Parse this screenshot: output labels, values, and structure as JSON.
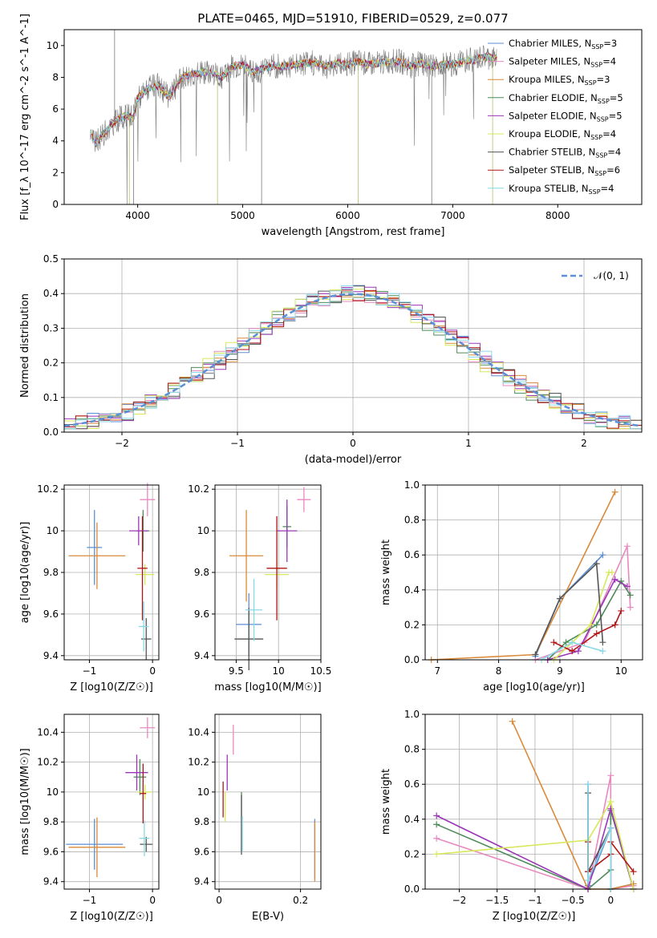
{
  "title": "PLATE=0465, MJD=51910, FIBERID=0529, z=0.077",
  "legend_colors": {
    "Chabrier MILES": "#5b8fd6",
    "Salpeter MILES": "#e889c0",
    "Kroupa MILES": "#d98a3a",
    "Chabrier ELODIE": "#4f8a5b",
    "Salpeter ELODIE": "#9b36b8",
    "Kroupa ELODIE": "#d7e85a",
    "Chabrier STELIB": "#555555",
    "Salpeter STELIB": "#b01515",
    "Kroupa STELIB": "#8ad8e6"
  },
  "chart_data": [
    {
      "type": "line",
      "xlabel": "wavelength [Angstrom, rest frame]",
      "ylabel": "Flux [f_λ 10^-17 erg cm^-2 s^-1 A^-1]",
      "xlim": [
        3300,
        8800
      ],
      "ylim": [
        0,
        11
      ],
      "xticks": [
        4000,
        5000,
        6000,
        7000,
        8000
      ],
      "yticks": [
        0,
        2,
        4,
        6,
        8,
        10
      ],
      "grid": false,
      "legend_position": "upper-right",
      "legend": [
        "Chabrier MILES, N_SSP=3",
        "Salpeter MILES, N_SSP=4",
        "Kroupa MILES, N_SSP=3",
        "Chabrier ELODIE, N_SSP=5",
        "Salpeter ELODIE, N_SSP=5",
        "Kroupa ELODIE, N_SSP=4",
        "Chabrier STELIB, N_SSP=4",
        "Salpeter STELIB, N_SSP=6",
        "Kroupa STELIB, N_SSP=4"
      ],
      "data_x": [
        3550,
        3600,
        3650,
        3700,
        3750,
        3800,
        3850,
        3900,
        3950,
        4000,
        4100,
        4200,
        4300,
        4400,
        4500,
        4600,
        4700,
        4800,
        4900,
        5000,
        5100,
        5200,
        5300,
        5400,
        5500,
        5600,
        5700,
        5800,
        5900,
        6000,
        6100,
        6200,
        6300,
        6400,
        6500,
        6600,
        6700,
        6800,
        6900,
        7000,
        7100,
        7200,
        7300,
        7400
      ],
      "data_y": [
        4.5,
        3.8,
        4.3,
        4.6,
        5.0,
        5.3,
        5.5,
        5.6,
        5.4,
        6.7,
        7.3,
        7.5,
        6.7,
        7.9,
        8.2,
        8.3,
        8.4,
        8.0,
        8.7,
        8.8,
        8.3,
        8.6,
        8.7,
        8.7,
        8.8,
        8.9,
        8.9,
        8.7,
        8.9,
        8.8,
        9.0,
        8.8,
        8.9,
        9.0,
        9.0,
        8.7,
        8.9,
        8.7,
        8.8,
        8.8,
        9.0,
        9.1,
        9.3,
        9.2
      ]
    },
    {
      "type": "step",
      "xlabel": "(data-model)/error",
      "ylabel": "Normed distribution",
      "xlim": [
        -2.5,
        2.5
      ],
      "ylim": [
        0,
        0.5
      ],
      "xticks": [
        -2,
        -1,
        0,
        1,
        2
      ],
      "yticks": [
        0.0,
        0.1,
        0.2,
        0.3,
        0.4,
        0.5
      ],
      "grid": true,
      "legend_position": "upper-right",
      "legend": [
        "𝒩(0, 1)"
      ],
      "bin_width": 0.1,
      "series": [
        {
          "offset": 0.0,
          "seed": 1
        },
        {
          "offset": 0.01,
          "seed": 2
        },
        {
          "offset": -0.01,
          "seed": 3
        },
        {
          "offset": 0.02,
          "seed": 4
        },
        {
          "offset": -0.02,
          "seed": 5
        },
        {
          "offset": 0.03,
          "seed": 6
        },
        {
          "offset": -0.03,
          "seed": 7
        },
        {
          "offset": 0.015,
          "seed": 8
        },
        {
          "offset": -0.015,
          "seed": 9
        }
      ]
    },
    {
      "type": "errorbar",
      "xlabel": "Z [log10(Z/Z☉)]",
      "ylabel": "age  [log10(age/yr)]",
      "xlim": [
        -1.4,
        0.1
      ],
      "ylim": [
        9.38,
        10.22
      ],
      "xticks": [
        -1,
        0
      ],
      "yticks": [
        9.4,
        9.6,
        9.8,
        10.0,
        10.2
      ],
      "grid": true,
      "points": [
        {
          "x": -0.92,
          "y": 9.92,
          "xe": 0.12,
          "ye": 0.18
        },
        {
          "x": -0.08,
          "y": 10.15,
          "xe": 0.12,
          "ye": 0.08
        },
        {
          "x": -0.88,
          "y": 9.88,
          "xe": 0.45,
          "ye": 0.16
        },
        {
          "x": -0.15,
          "y": 10.0,
          "xe": 0.1,
          "ye": 0.1
        },
        {
          "x": -0.22,
          "y": 10.0,
          "xe": 0.15,
          "ye": 0.07
        },
        {
          "x": -0.12,
          "y": 9.79,
          "xe": 0.15,
          "ye": 0.05
        },
        {
          "x": -0.1,
          "y": 9.48,
          "xe": 0.08,
          "ye": 0.1
        },
        {
          "x": -0.16,
          "y": 9.82,
          "xe": 0.08,
          "ye": 0.25
        },
        {
          "x": -0.14,
          "y": 9.54,
          "xe": 0.08,
          "ye": 0.12
        }
      ]
    },
    {
      "type": "errorbar",
      "xlabel": "mass [log10(M/M☉)]",
      "ylabel": "",
      "xlim": [
        9.25,
        10.5
      ],
      "ylim": [
        9.38,
        10.22
      ],
      "xticks": [
        9.5,
        10.0,
        10.5
      ],
      "yticks": [
        9.4,
        9.6,
        9.8,
        10.0,
        10.2
      ],
      "grid": true,
      "points": [
        {
          "x": 9.65,
          "y": 9.55,
          "xe": 0.15,
          "ye": 0.15
        },
        {
          "x": 10.3,
          "y": 10.15,
          "xe": 0.08,
          "ye": 0.06
        },
        {
          "x": 9.62,
          "y": 9.88,
          "xe": 0.2,
          "ye": 0.22
        },
        {
          "x": 10.1,
          "y": 10.02,
          "xe": 0.05,
          "ye": 0.1
        },
        {
          "x": 10.1,
          "y": 10.0,
          "xe": 0.12,
          "ye": 0.15
        },
        {
          "x": 9.98,
          "y": 9.79,
          "xe": 0.14,
          "ye": 0.06
        },
        {
          "x": 9.65,
          "y": 9.48,
          "xe": 0.17,
          "ye": 0.15
        },
        {
          "x": 9.98,
          "y": 9.82,
          "xe": 0.12,
          "ye": 0.25
        },
        {
          "x": 9.71,
          "y": 9.62,
          "xe": 0.1,
          "ye": 0.15
        }
      ]
    },
    {
      "type": "line",
      "xlabel": "age  [log10(age/yr)]",
      "ylabel": "mass weight",
      "xlim": [
        6.8,
        10.35
      ],
      "ylim": [
        0,
        1
      ],
      "xticks": [
        7,
        8,
        9,
        10
      ],
      "yticks": [
        0.0,
        0.2,
        0.4,
        0.6,
        0.8,
        1.0
      ],
      "grid": true,
      "series": [
        {
          "x": [
            8.6,
            9.0,
            9.7
          ],
          "y": [
            0.02,
            0.35,
            0.6
          ]
        },
        {
          "x": [
            8.6,
            9.4,
            10.1,
            10.15
          ],
          "y": [
            0.0,
            0.1,
            0.65,
            0.3
          ]
        },
        {
          "x": [
            6.9,
            8.6,
            9.9
          ],
          "y": [
            0.0,
            0.03,
            0.96
          ]
        },
        {
          "x": [
            8.8,
            9.1,
            9.6,
            10.0,
            10.15
          ],
          "y": [
            0.0,
            0.1,
            0.2,
            0.45,
            0.37
          ]
        },
        {
          "x": [
            8.8,
            9.3,
            9.9,
            10.1
          ],
          "y": [
            0.0,
            0.05,
            0.46,
            0.42
          ]
        },
        {
          "x": [
            8.9,
            9.5,
            9.8,
            9.85
          ],
          "y": [
            0.0,
            0.2,
            0.5,
            0.5
          ]
        },
        {
          "x": [
            8.6,
            9.0,
            9.6,
            9.7
          ],
          "y": [
            0.03,
            0.35,
            0.55,
            0.1
          ]
        },
        {
          "x": [
            8.9,
            9.2,
            9.6,
            9.9,
            10.0
          ],
          "y": [
            0.1,
            0.05,
            0.15,
            0.2,
            0.28
          ]
        },
        {
          "x": [
            8.7,
            9.2,
            9.7
          ],
          "y": [
            0.0,
            0.1,
            0.05
          ]
        }
      ]
    },
    {
      "type": "errorbar",
      "xlabel": "Z [log10(Z/Z☉)]",
      "ylabel": "mass [log10(M/M☉)]",
      "xlim": [
        -1.4,
        0.1
      ],
      "ylim": [
        9.35,
        10.52
      ],
      "xticks": [
        -1,
        0
      ],
      "yticks": [
        9.4,
        9.6,
        9.8,
        10.0,
        10.2,
        10.4
      ],
      "grid": true,
      "points": [
        {
          "x": -0.92,
          "y": 9.65,
          "xe": 0.45,
          "ye": 0.17
        },
        {
          "x": -0.08,
          "y": 10.43,
          "xe": 0.12,
          "ye": 0.07
        },
        {
          "x": -0.88,
          "y": 9.63,
          "xe": 0.45,
          "ye": 0.2
        },
        {
          "x": -0.2,
          "y": 10.1,
          "xe": 0.1,
          "ye": 0.12
        },
        {
          "x": -0.25,
          "y": 10.13,
          "xe": 0.18,
          "ye": 0.12
        },
        {
          "x": -0.12,
          "y": 10.0,
          "xe": 0.12,
          "ye": 0.05
        },
        {
          "x": -0.1,
          "y": 9.65,
          "xe": 0.1,
          "ye": 0.05
        },
        {
          "x": -0.15,
          "y": 9.99,
          "xe": 0.05,
          "ye": 0.2
        },
        {
          "x": -0.13,
          "y": 9.69,
          "xe": 0.08,
          "ye": 0.12
        }
      ]
    },
    {
      "type": "errorbar",
      "xlabel": "E(B-V)",
      "ylabel": "",
      "xlim": [
        -0.01,
        0.25
      ],
      "ylim": [
        9.35,
        10.52
      ],
      "xticks": [
        0.0,
        0.2
      ],
      "yticks": [
        9.4,
        9.6,
        9.8,
        10.0,
        10.2,
        10.4
      ],
      "grid": true,
      "points": [
        {
          "x": 0.235,
          "y": 9.62,
          "xe": 0,
          "ye": 0.2
        },
        {
          "x": 0.035,
          "y": 10.35,
          "xe": 0,
          "ye": 0.1
        },
        {
          "x": 0.235,
          "y": 9.6,
          "xe": 0,
          "ye": 0.2
        },
        {
          "x": 0.055,
          "y": 9.8,
          "xe": 0,
          "ye": 0.2
        },
        {
          "x": 0.02,
          "y": 10.13,
          "xe": 0,
          "ye": 0.12
        },
        {
          "x": 0.015,
          "y": 9.9,
          "xe": 0,
          "ye": 0.1
        },
        {
          "x": 0.055,
          "y": 9.78,
          "xe": 0,
          "ye": 0.2
        },
        {
          "x": 0.01,
          "y": 9.95,
          "xe": 0,
          "ye": 0.12
        },
        {
          "x": 0.057,
          "y": 9.72,
          "xe": 0,
          "ye": 0.12
        }
      ]
    },
    {
      "type": "line",
      "xlabel": "Z [log10(Z/Z☉)]",
      "ylabel": "mass weight",
      "xlim": [
        -2.45,
        0.42
      ],
      "ylim": [
        0,
        1
      ],
      "xticks": [
        -2.0,
        -1.5,
        -1.0,
        -0.5,
        0.0
      ],
      "yticks": [
        0.0,
        0.2,
        0.4,
        0.6,
        0.8,
        1.0
      ],
      "grid": true,
      "series": [
        {
          "x": [
            -0.3,
            -0.3,
            0.0,
            0.0,
            0.3
          ],
          "y": [
            0.6,
            0.02,
            0.35,
            0.0,
            0.03
          ]
        },
        {
          "x": [
            -2.3,
            -0.3,
            0.0,
            0.0,
            0.3
          ],
          "y": [
            0.29,
            0.0,
            0.65,
            0.0,
            0.02
          ]
        },
        {
          "x": [
            -1.3,
            -0.3,
            0.0,
            0.3
          ],
          "y": [
            0.96,
            0.0,
            0.0,
            0.03
          ]
        },
        {
          "x": [
            -2.3,
            -0.3,
            0.0,
            0.0,
            0.3
          ],
          "y": [
            0.37,
            0.0,
            0.11,
            0.45,
            0.0
          ]
        },
        {
          "x": [
            -2.3,
            -0.3,
            0.0,
            0.3
          ],
          "y": [
            0.42,
            0.0,
            0.46,
            0.0
          ]
        },
        {
          "x": [
            -2.3,
            -0.3,
            0.0,
            0.3
          ],
          "y": [
            0.2,
            0.28,
            0.5,
            0.0
          ]
        },
        {
          "x": [
            -0.3,
            -0.3,
            0.0,
            0.0
          ],
          "y": [
            0.55,
            0.1,
            0.35,
            0.0
          ]
        },
        {
          "x": [
            -0.3,
            -0.3,
            0.0,
            0.0,
            0.3
          ],
          "y": [
            0.27,
            0.1,
            0.2,
            0.27,
            0.1
          ]
        },
        {
          "x": [
            -0.3,
            -0.3,
            0.0,
            0.0
          ],
          "y": [
            0.6,
            0.05,
            0.35,
            0.0
          ]
        }
      ]
    }
  ]
}
